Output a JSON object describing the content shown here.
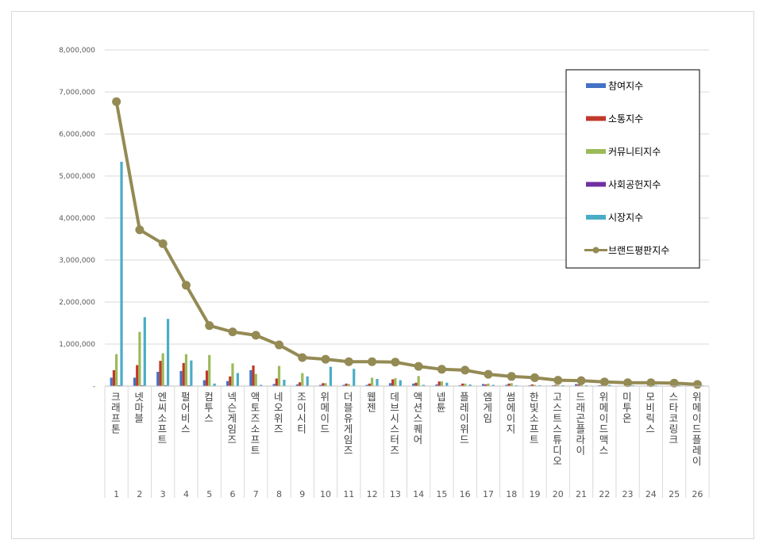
{
  "chart_data": {
    "type": "bar",
    "title": "",
    "xlabel": "",
    "ylabel": "",
    "ylim": [
      0,
      8000000
    ],
    "y_ticks": [
      "-",
      "1,000,000",
      "2,000,000",
      "3,000,000",
      "4,000,000",
      "5,000,000",
      "6,000,000",
      "7,000,000",
      "8,000,000"
    ],
    "grid": "horizontal",
    "legend_position": "top-right",
    "categories": [
      "크래프톤",
      "넷마블",
      "엔씨소프트",
      "펄어비스",
      "컴투스",
      "넥슨게임즈",
      "액토즈소프트",
      "네오위즈",
      "조이시티",
      "위메이드",
      "더블유게임즈",
      "웹젠",
      "데브시스터즈",
      "액션스퀘어",
      "넵튠",
      "플레이위드",
      "엠게임",
      "썸에이지",
      "한빛소프트",
      "고스트스튜디오",
      "드래곤플라이",
      "위메이드맥스",
      "미투온",
      "모비릭스",
      "스타코링크",
      "위메이드플레이"
    ],
    "ranks": [
      "1",
      "2",
      "3",
      "4",
      "5",
      "6",
      "7",
      "8",
      "9",
      "10",
      "11",
      "12",
      "13",
      "14",
      "15",
      "16",
      "17",
      "18",
      "19",
      "20",
      "21",
      "22",
      "23",
      "24",
      "25",
      "26"
    ],
    "series": [
      {
        "name": "참여지수",
        "type": "bar",
        "color": "#4472c4",
        "values": [
          200000,
          200000,
          340000,
          360000,
          140000,
          120000,
          380000,
          50000,
          40000,
          30000,
          30000,
          30000,
          70000,
          60000,
          40000,
          20000,
          50000,
          30000,
          20000,
          20000,
          50000,
          20000,
          10000,
          10000,
          10000,
          10000
        ]
      },
      {
        "name": "소통지수",
        "type": "bar",
        "color": "#c0392b",
        "values": [
          380000,
          500000,
          600000,
          550000,
          370000,
          230000,
          490000,
          180000,
          90000,
          70000,
          60000,
          60000,
          160000,
          80000,
          110000,
          60000,
          40000,
          60000,
          40000,
          30000,
          40000,
          20000,
          10000,
          20000,
          10000,
          10000
        ]
      },
      {
        "name": "커뮤니티지수",
        "type": "bar",
        "color": "#9bbb59",
        "values": [
          760000,
          1290000,
          780000,
          760000,
          740000,
          540000,
          290000,
          480000,
          310000,
          70000,
          50000,
          200000,
          190000,
          240000,
          110000,
          60000,
          60000,
          70000,
          30000,
          30000,
          40000,
          30000,
          20000,
          20000,
          20000,
          15000
        ]
      },
      {
        "name": "사회공헌지수",
        "type": "bar",
        "color": "#7030a0",
        "values": [
          20000,
          20000,
          20000,
          20000,
          10000,
          10000,
          10000,
          10000,
          10000,
          10000,
          10000,
          10000,
          10000,
          10000,
          10000,
          10000,
          10000,
          10000,
          10000,
          10000,
          10000,
          10000,
          10000,
          10000,
          10000,
          10000
        ]
      },
      {
        "name": "시장지수",
        "type": "bar",
        "color": "#4bacc6",
        "values": [
          5340000,
          1640000,
          1600000,
          610000,
          60000,
          310000,
          30000,
          150000,
          230000,
          460000,
          410000,
          170000,
          140000,
          30000,
          80000,
          40000,
          30000,
          20000,
          20000,
          20000,
          20000,
          30000,
          20000,
          20000,
          20000,
          15000
        ]
      },
      {
        "name": "브랜드평판지수",
        "type": "line",
        "color": "#948a54",
        "values": [
          6770000,
          3720000,
          3390000,
          2400000,
          1440000,
          1290000,
          1210000,
          980000,
          680000,
          640000,
          580000,
          580000,
          570000,
          470000,
          400000,
          380000,
          280000,
          230000,
          200000,
          140000,
          130000,
          100000,
          80000,
          80000,
          70000,
          40000
        ]
      }
    ]
  }
}
